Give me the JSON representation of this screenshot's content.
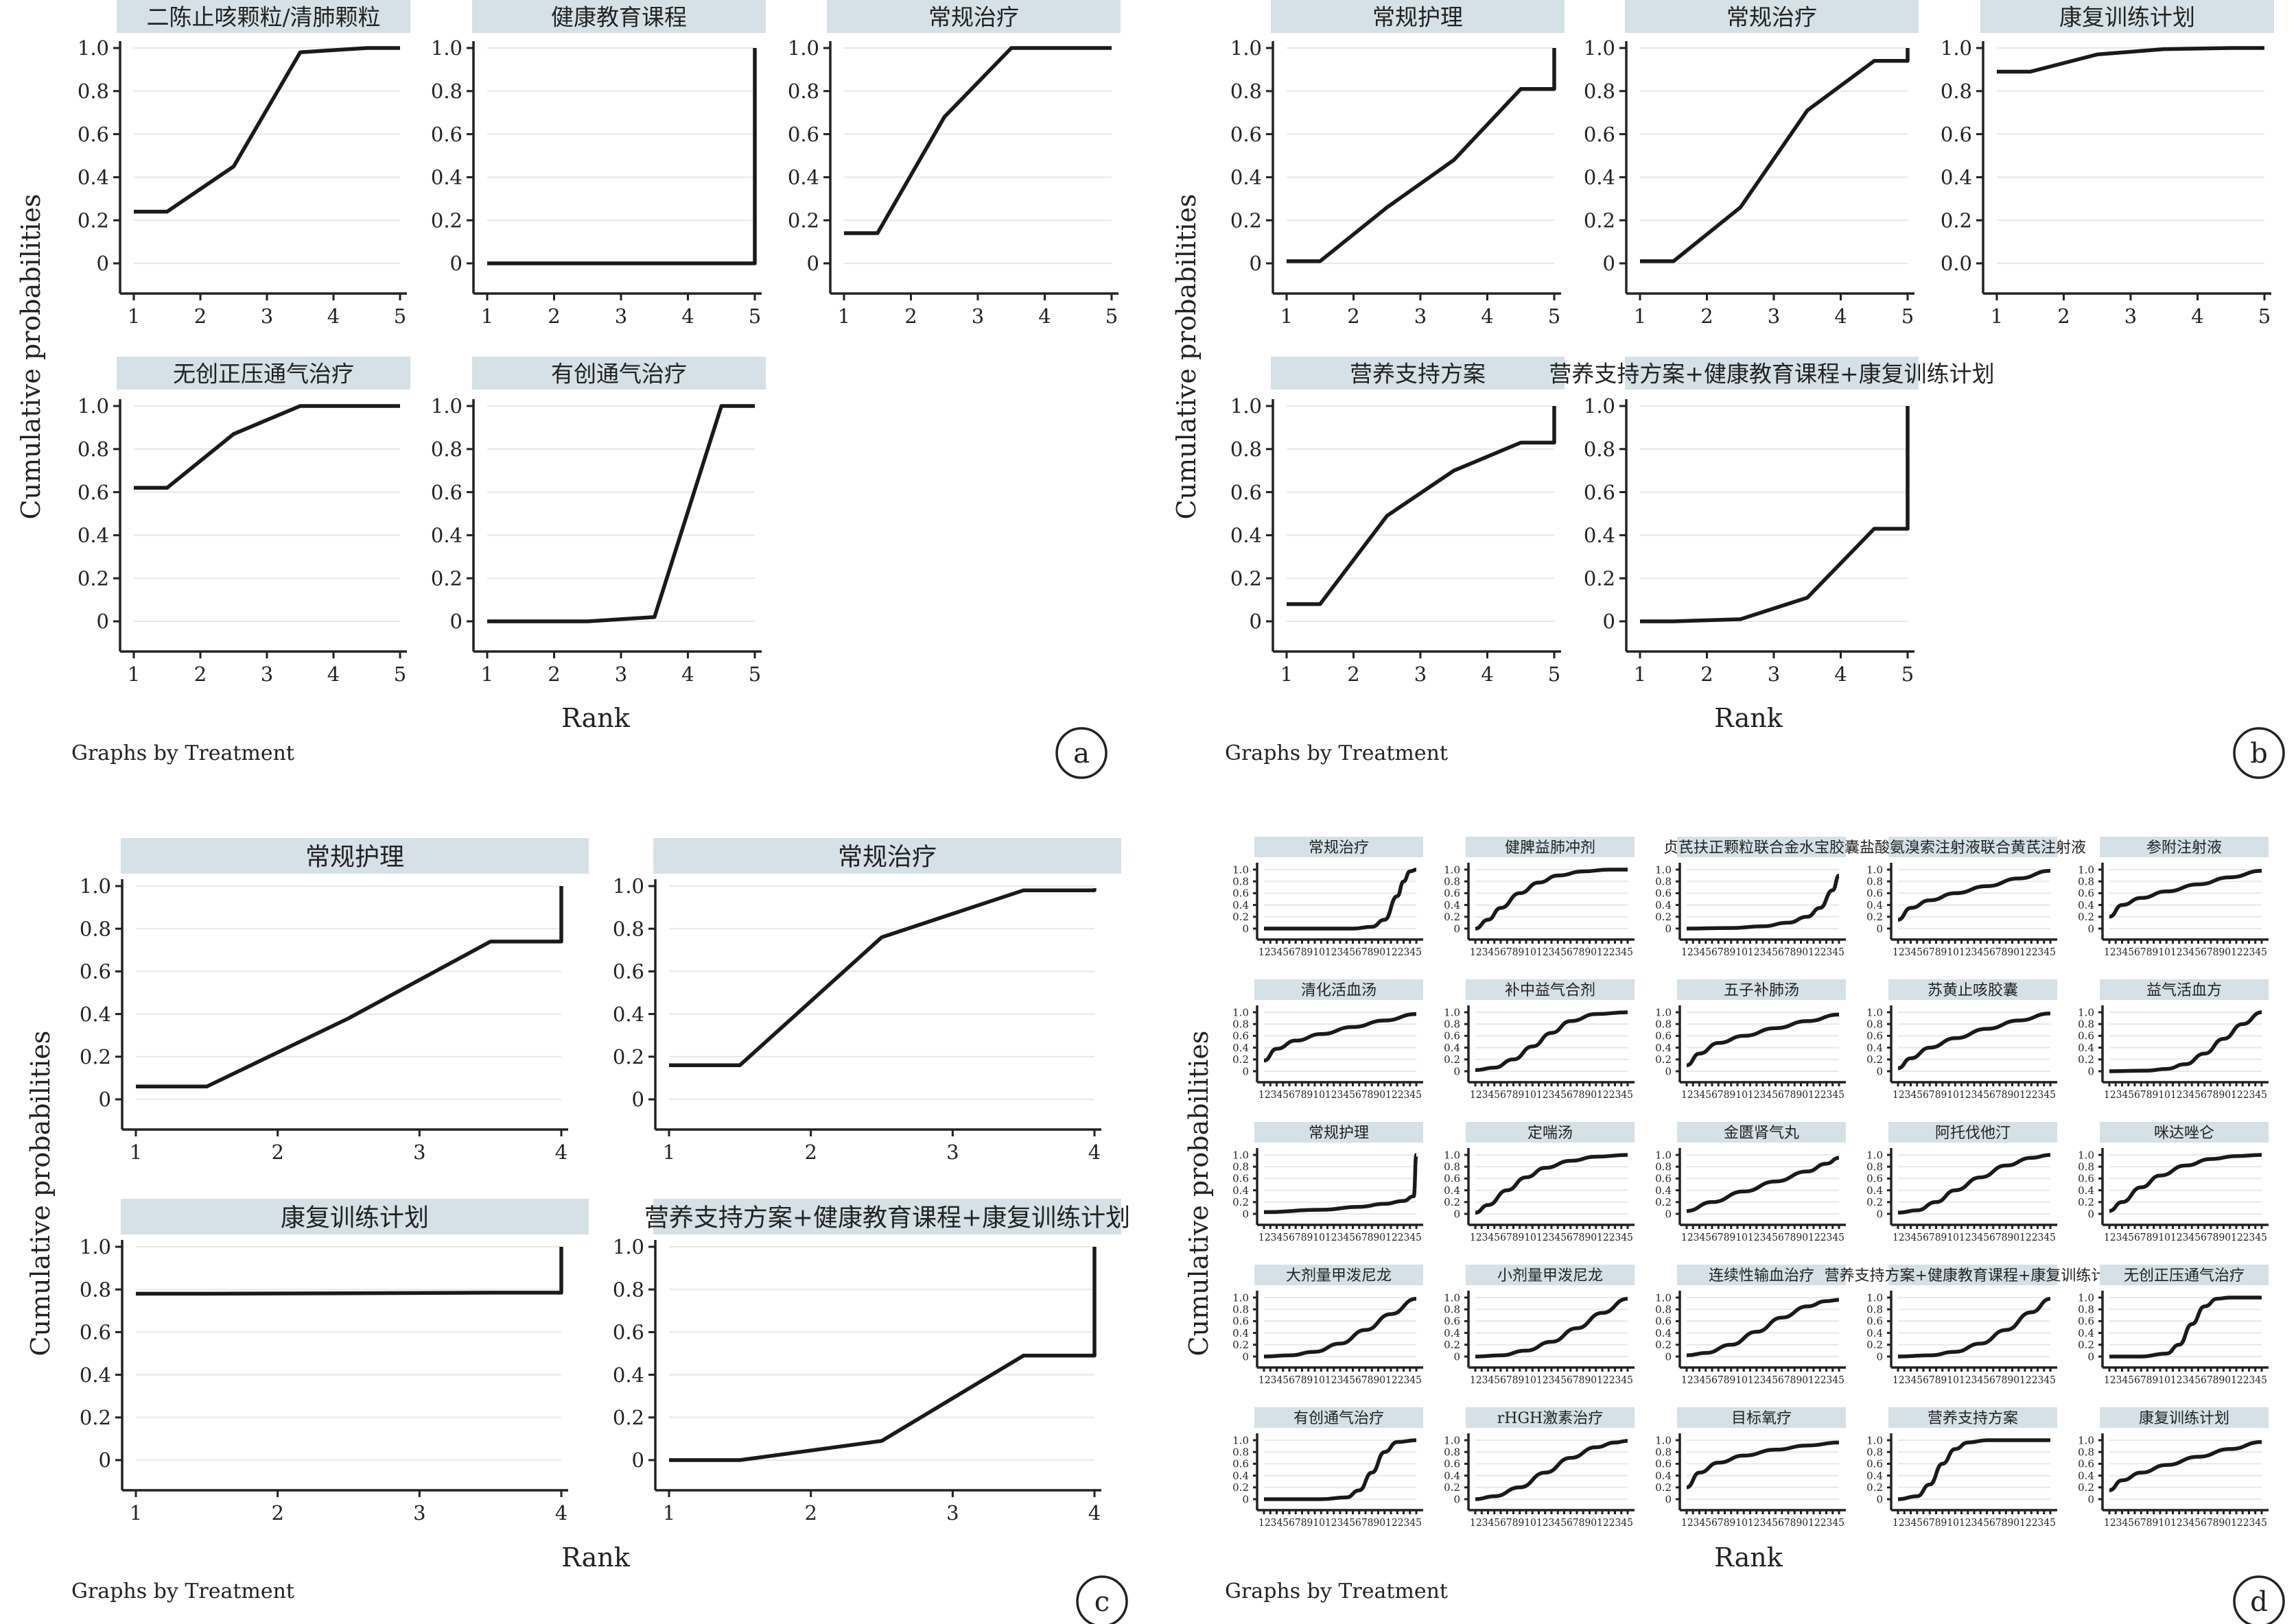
{
  "chart_data": [
    {
      "type": "line",
      "label": "a",
      "ylabel": "Cumulative probabilities",
      "xlabel": "Rank",
      "note": "Graphs by Treatment",
      "xlim": [
        1,
        5
      ],
      "ylim": [
        0,
        1
      ],
      "x_ticks": [
        "1",
        "2",
        "3",
        "4",
        "5"
      ],
      "y_ticks": [
        "0",
        "0.2",
        "0.4",
        "0.6",
        "0.8",
        "1.0"
      ],
      "panels": [
        {
          "title": "二陈止咳颗粒/清肺颗粒",
          "x": [
            1,
            1.5,
            2.5,
            3.5,
            4.5,
            5
          ],
          "y": [
            0.24,
            0.24,
            0.45,
            0.98,
            1.0,
            1.0
          ]
        },
        {
          "title": "健康教育课程",
          "x": [
            1,
            4.5,
            5,
            5
          ],
          "y": [
            0.0,
            0.0,
            0.0,
            1.0
          ]
        },
        {
          "title": "常规治疗",
          "x": [
            1,
            1.5,
            2.5,
            3.5,
            4.5,
            5
          ],
          "y": [
            0.14,
            0.14,
            0.68,
            1.0,
            1.0,
            1.0
          ]
        },
        {
          "title": "无创正压通气治疗",
          "x": [
            1,
            1.5,
            2.5,
            3.5,
            4.5,
            5
          ],
          "y": [
            0.62,
            0.62,
            0.87,
            1.0,
            1.0,
            1.0
          ]
        },
        {
          "title": "有创通气治疗",
          "x": [
            1,
            1.5,
            2.5,
            3.5,
            4.5,
            5
          ],
          "y": [
            0.0,
            0.0,
            0.0,
            0.02,
            1.0,
            1.0
          ]
        }
      ]
    },
    {
      "type": "line",
      "label": "b",
      "ylabel": "Cumulative probabilities",
      "xlabel": "Rank",
      "note": "Graphs by Treatment",
      "xlim": [
        1,
        5
      ],
      "ylim": [
        0,
        1
      ],
      "x_ticks": [
        "1",
        "2",
        "3",
        "4",
        "5"
      ],
      "y_ticks": [
        "0",
        "0.2",
        "0.4",
        "0.6",
        "0.8",
        "1.0"
      ],
      "panels": [
        {
          "title": "常规护理",
          "x": [
            1,
            1.5,
            2.5,
            3.5,
            4.5,
            5,
            5
          ],
          "y": [
            0.01,
            0.01,
            0.26,
            0.48,
            0.81,
            0.81,
            1.0
          ]
        },
        {
          "title": "常规治疗",
          "x": [
            1,
            1.5,
            2.5,
            3.5,
            4.5,
            5,
            5
          ],
          "y": [
            0.01,
            0.01,
            0.26,
            0.71,
            0.94,
            0.94,
            1.0
          ]
        },
        {
          "title": "康复训练计划",
          "y_ticks": [
            "0.0",
            "0.2",
            "0.4",
            "0.6",
            "0.8",
            "1.0"
          ],
          "x": [
            1,
            1.5,
            2.5,
            3.5,
            4.5,
            5
          ],
          "y": [
            0.89,
            0.89,
            0.97,
            0.995,
            1.0,
            1.0
          ]
        },
        {
          "title": "营养支持方案",
          "x": [
            1,
            1.5,
            2.5,
            3.5,
            4.5,
            5,
            5
          ],
          "y": [
            0.08,
            0.08,
            0.49,
            0.7,
            0.83,
            0.83,
            1.0
          ]
        },
        {
          "title": "营养支持方案+健康教育课程+康复训练计划",
          "x": [
            1,
            1.5,
            2.5,
            3.5,
            4.5,
            5,
            5
          ],
          "y": [
            0.0,
            0.0,
            0.01,
            0.11,
            0.43,
            0.43,
            1.0
          ]
        }
      ]
    },
    {
      "type": "line",
      "label": "c",
      "ylabel": "Cumulative probabilities",
      "xlabel": "Rank",
      "note": "Graphs by Treatment",
      "xlim": [
        1,
        4
      ],
      "ylim": [
        0,
        1
      ],
      "x_ticks": [
        "1",
        "2",
        "3",
        "4"
      ],
      "y_ticks": [
        "0",
        "0.2",
        "0.4",
        "0.6",
        "0.8",
        "1.0"
      ],
      "panels": [
        {
          "title": "常规护理",
          "x": [
            1,
            1.5,
            2.5,
            3.5,
            4,
            4
          ],
          "y": [
            0.06,
            0.06,
            0.38,
            0.74,
            0.74,
            1.0
          ]
        },
        {
          "title": "常规治疗",
          "x": [
            1,
            1.5,
            2.5,
            3.5,
            4,
            4
          ],
          "y": [
            0.16,
            0.16,
            0.76,
            0.98,
            0.98,
            0.99
          ]
        },
        {
          "title": "康复训练计划",
          "x": [
            1,
            1.5,
            2.5,
            3.5,
            4,
            4
          ],
          "y": [
            0.78,
            0.78,
            0.782,
            0.785,
            0.785,
            1.0
          ]
        },
        {
          "title": "营养支持方案+健康教育课程+康复训练计划",
          "x": [
            1,
            1.5,
            2.5,
            3.5,
            4,
            4
          ],
          "y": [
            0.0,
            0.0,
            0.09,
            0.49,
            0.49,
            1.0
          ]
        }
      ]
    },
    {
      "type": "line",
      "label": "d",
      "ylabel": "Cumulative probabilities",
      "xlabel": "Rank",
      "note": "Graphs by Treatment",
      "xlim": [
        1,
        25
      ],
      "ylim": [
        0,
        1
      ],
      "x_tick_text": "123456789101234567890122345",
      "y_ticks": [
        "0",
        "0.2",
        "0.4",
        "0.6",
        "0.8",
        "1.0"
      ],
      "panels": [
        {
          "title": "常规治疗",
          "x": [
            1,
            15,
            18,
            20,
            22,
            23,
            24,
            25
          ],
          "y": [
            0.0,
            0.0,
            0.03,
            0.15,
            0.55,
            0.8,
            0.97,
            1.0
          ]
        },
        {
          "title": "健脾益肺冲剂",
          "x": [
            1,
            3,
            5,
            8,
            11,
            14,
            18,
            22,
            25
          ],
          "y": [
            0.0,
            0.15,
            0.35,
            0.6,
            0.78,
            0.9,
            0.97,
            1.0,
            1.0
          ]
        },
        {
          "title": "贞芪扶正颗粒联合金水宝胶囊",
          "x": [
            1,
            8,
            13,
            17,
            20,
            22,
            24,
            25
          ],
          "y": [
            0.0,
            0.01,
            0.04,
            0.1,
            0.2,
            0.35,
            0.65,
            0.9
          ]
        },
        {
          "title": "盐酸氨溴索注射液联合黄芪注射液",
          "x": [
            1,
            3,
            6,
            10,
            15,
            20,
            25
          ],
          "y": [
            0.15,
            0.35,
            0.48,
            0.6,
            0.72,
            0.85,
            0.98
          ]
        },
        {
          "title": "参附注射液",
          "x": [
            1,
            3,
            6,
            10,
            15,
            20,
            25
          ],
          "y": [
            0.2,
            0.4,
            0.52,
            0.63,
            0.75,
            0.87,
            0.98
          ]
        },
        {
          "title": "清化活血汤",
          "x": [
            1,
            3,
            6,
            10,
            15,
            20,
            25
          ],
          "y": [
            0.18,
            0.38,
            0.52,
            0.63,
            0.75,
            0.86,
            0.97
          ]
        },
        {
          "title": "补中益气合剂",
          "x": [
            1,
            4,
            7,
            10,
            13,
            16,
            20,
            25
          ],
          "y": [
            0.02,
            0.06,
            0.2,
            0.42,
            0.65,
            0.85,
            0.97,
            1.0
          ]
        },
        {
          "title": "五子补肺汤",
          "x": [
            1,
            3,
            6,
            10,
            15,
            20,
            25
          ],
          "y": [
            0.1,
            0.3,
            0.48,
            0.6,
            0.73,
            0.85,
            0.96
          ]
        },
        {
          "title": "苏黄止咳胶囊",
          "x": [
            1,
            3,
            6,
            10,
            15,
            20,
            25
          ],
          "y": [
            0.05,
            0.22,
            0.4,
            0.56,
            0.72,
            0.86,
            0.98
          ]
        },
        {
          "title": "益气活血方",
          "x": [
            1,
            7,
            10,
            13,
            16,
            19,
            22,
            25
          ],
          "y": [
            0.0,
            0.01,
            0.04,
            0.12,
            0.3,
            0.55,
            0.8,
            1.0
          ]
        },
        {
          "title": "常规护理",
          "x": [
            1,
            10,
            16,
            20,
            23,
            24.6,
            24.6,
            25
          ],
          "y": [
            0.03,
            0.07,
            0.12,
            0.17,
            0.22,
            0.3,
            0.3,
            1.0
          ]
        },
        {
          "title": "定喘汤",
          "x": [
            1,
            3,
            6,
            9,
            12,
            16,
            20,
            25
          ],
          "y": [
            0.02,
            0.15,
            0.4,
            0.62,
            0.78,
            0.9,
            0.97,
            1.0
          ]
        },
        {
          "title": "金匮肾气丸",
          "x": [
            1,
            5,
            10,
            15,
            20,
            23,
            25
          ],
          "y": [
            0.05,
            0.2,
            0.38,
            0.55,
            0.72,
            0.85,
            0.95
          ]
        },
        {
          "title": "阿托伐他汀",
          "x": [
            1,
            4,
            7,
            10,
            14,
            18,
            22,
            25
          ],
          "y": [
            0.02,
            0.06,
            0.2,
            0.4,
            0.62,
            0.82,
            0.95,
            1.0
          ]
        },
        {
          "title": "咪达唑仑",
          "x": [
            1,
            3,
            6,
            9,
            13,
            17,
            21,
            25
          ],
          "y": [
            0.05,
            0.2,
            0.45,
            0.65,
            0.82,
            0.93,
            0.98,
            1.0
          ]
        },
        {
          "title": "大剂量甲泼尼龙",
          "x": [
            1,
            5,
            9,
            13,
            17,
            21,
            25
          ],
          "y": [
            0.0,
            0.02,
            0.08,
            0.22,
            0.45,
            0.72,
            0.98
          ]
        },
        {
          "title": "小剂量甲泼尼龙",
          "x": [
            1,
            5,
            9,
            13,
            17,
            21,
            25
          ],
          "y": [
            0.0,
            0.02,
            0.1,
            0.25,
            0.48,
            0.74,
            0.98
          ]
        },
        {
          "title": "连续性输血治疗",
          "x": [
            1,
            4,
            8,
            12,
            16,
            20,
            23,
            25
          ],
          "y": [
            0.02,
            0.06,
            0.2,
            0.42,
            0.66,
            0.85,
            0.94,
            0.96
          ]
        },
        {
          "title": "营养支持方案+健康教育课程+康复训练计划",
          "x": [
            1,
            6,
            10,
            14,
            18,
            22,
            25
          ],
          "y": [
            0.0,
            0.02,
            0.08,
            0.22,
            0.45,
            0.75,
            0.98
          ]
        },
        {
          "title": "无创正压通气治疗",
          "x": [
            1,
            6,
            10,
            12,
            14,
            16,
            18,
            20,
            25
          ],
          "y": [
            0.0,
            0.0,
            0.05,
            0.2,
            0.55,
            0.85,
            0.98,
            1.0,
            1.0
          ]
        },
        {
          "title": "有创通气治疗",
          "x": [
            1,
            10,
            14,
            16,
            18,
            20,
            22,
            25
          ],
          "y": [
            0.0,
            0.0,
            0.03,
            0.15,
            0.45,
            0.8,
            0.97,
            1.0
          ]
        },
        {
          "title": "rHGH激素治疗",
          "x": [
            1,
            4,
            8,
            12,
            16,
            20,
            23,
            25
          ],
          "y": [
            0.0,
            0.05,
            0.2,
            0.45,
            0.7,
            0.88,
            0.96,
            0.99
          ]
        },
        {
          "title": "目标氧疗",
          "x": [
            1,
            3,
            6,
            10,
            15,
            20,
            25
          ],
          "y": [
            0.2,
            0.45,
            0.62,
            0.74,
            0.84,
            0.91,
            0.96
          ]
        },
        {
          "title": "营养支持方案",
          "x": [
            1,
            4,
            6,
            8,
            10,
            12,
            15,
            25
          ],
          "y": [
            0.0,
            0.05,
            0.25,
            0.6,
            0.85,
            0.96,
            1.0,
            1.0
          ]
        },
        {
          "title": "康复训练计划",
          "x": [
            1,
            3,
            6,
            10,
            15,
            20,
            25
          ],
          "y": [
            0.15,
            0.32,
            0.45,
            0.58,
            0.72,
            0.85,
            0.97
          ]
        }
      ]
    }
  ]
}
